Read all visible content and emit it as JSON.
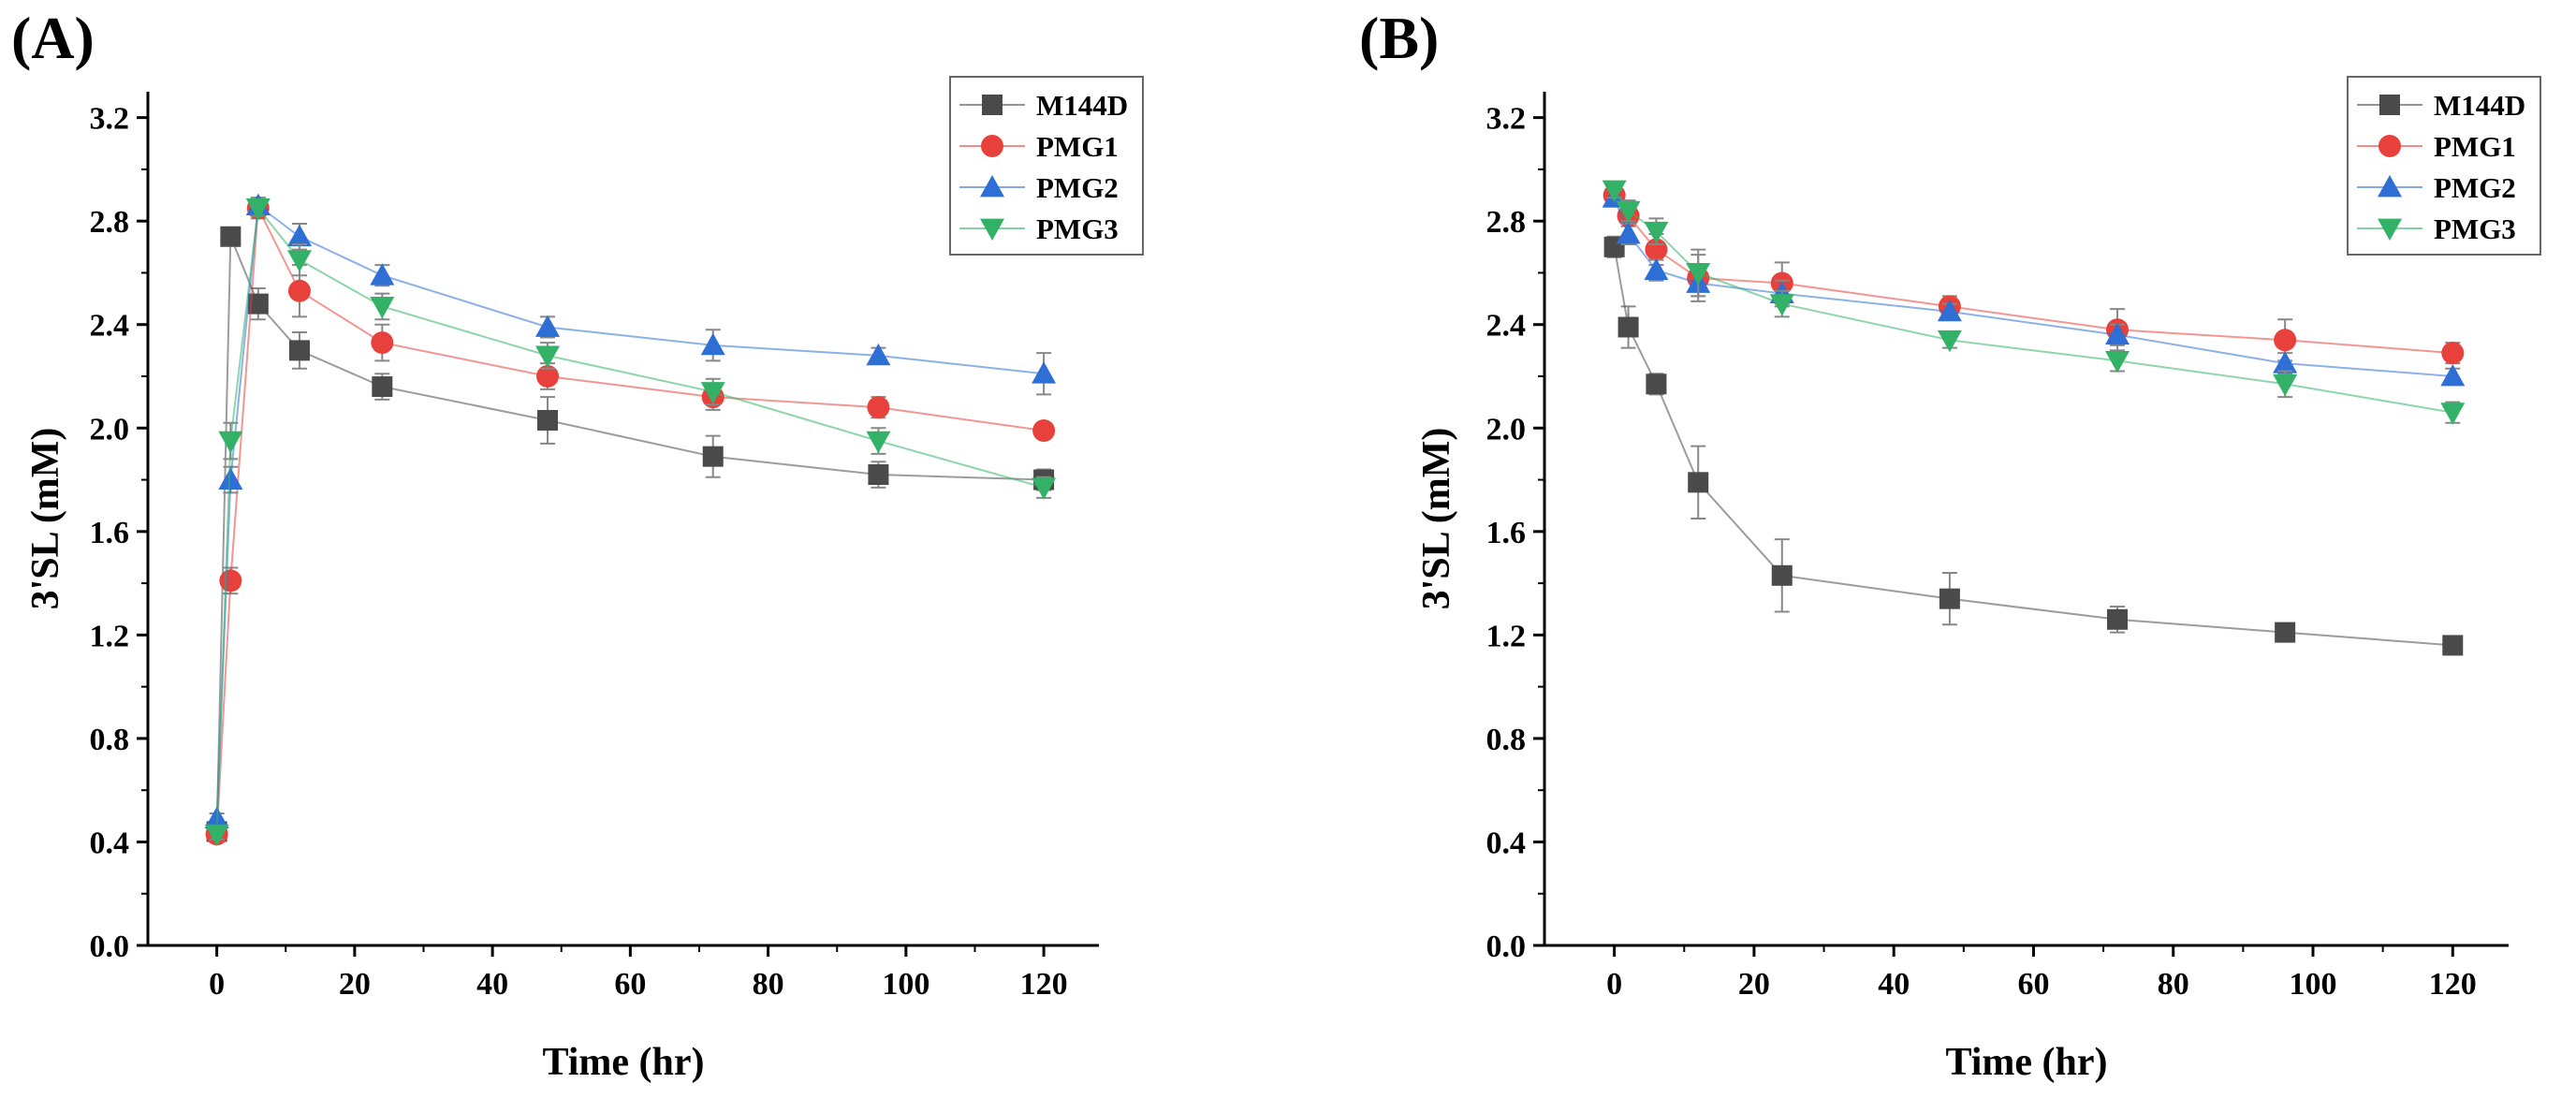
{
  "chart_data": [
    {
      "type": "line",
      "panel_label": "(A)",
      "xlabel": "Time (hr)",
      "ylabel": "3'SL (mM)",
      "xlim": [
        -10,
        128
      ],
      "ylim": [
        0,
        3.3
      ],
      "xticks": [
        0,
        20,
        40,
        60,
        80,
        100,
        120
      ],
      "yticks": [
        0.0,
        0.4,
        0.8,
        1.2,
        1.6,
        2.0,
        2.4,
        2.8,
        3.2
      ],
      "xtick_labels": [
        "0",
        "20",
        "40",
        "60",
        "80",
        "100",
        "120"
      ],
      "ytick_labels": [
        "0.0",
        "0.4",
        "0.8",
        "1.2",
        "1.6",
        "2.0",
        "2.4",
        "2.8",
        "3.2"
      ],
      "legend": "top-right",
      "series": [
        {
          "name": "M144D",
          "color": "#4a4a4a",
          "marker": "square",
          "x": [
            0,
            2,
            6,
            12,
            24,
            48,
            72,
            96,
            120
          ],
          "y": [
            0.44,
            2.74,
            2.48,
            2.3,
            2.16,
            2.03,
            1.89,
            1.82,
            1.8
          ],
          "err": [
            0.02,
            0.03,
            0.06,
            0.07,
            0.05,
            0.09,
            0.08,
            0.05,
            0.04
          ]
        },
        {
          "name": "PMG1",
          "color": "#e8403a",
          "marker": "circle",
          "x": [
            0,
            2,
            6,
            12,
            24,
            48,
            72,
            96,
            120
          ],
          "y": [
            0.43,
            1.41,
            2.85,
            2.53,
            2.33,
            2.2,
            2.12,
            2.08,
            1.99
          ],
          "err": [
            0.02,
            0.05,
            0.04,
            0.1,
            0.07,
            0.05,
            0.05,
            0.04,
            0.03
          ]
        },
        {
          "name": "PMG2",
          "color": "#2e6fd6",
          "marker": "triangle-up",
          "x": [
            0,
            2,
            6,
            12,
            24,
            48,
            72,
            96,
            120
          ],
          "y": [
            0.49,
            1.8,
            2.86,
            2.74,
            2.59,
            2.39,
            2.32,
            2.28,
            2.21
          ],
          "err": [
            0.02,
            0.05,
            0.03,
            0.05,
            0.04,
            0.04,
            0.06,
            0.03,
            0.08
          ]
        },
        {
          "name": "PMG3",
          "color": "#33b267",
          "marker": "triangle-down",
          "x": [
            0,
            2,
            6,
            12,
            24,
            48,
            72,
            96,
            120
          ],
          "y": [
            0.43,
            1.95,
            2.85,
            2.65,
            2.47,
            2.28,
            2.14,
            1.95,
            1.77
          ],
          "err": [
            0.02,
            0.07,
            0.03,
            0.06,
            0.05,
            0.05,
            0.05,
            0.05,
            0.04
          ]
        }
      ]
    },
    {
      "type": "line",
      "panel_label": "(B)",
      "xlabel": "Time (hr)",
      "ylabel": "3'SL (mM)",
      "xlim": [
        -10,
        128
      ],
      "ylim": [
        0,
        3.3
      ],
      "xticks": [
        0,
        20,
        40,
        60,
        80,
        100,
        120
      ],
      "yticks": [
        0.0,
        0.4,
        0.8,
        1.2,
        1.6,
        2.0,
        2.4,
        2.8,
        3.2
      ],
      "xtick_labels": [
        "0",
        "20",
        "40",
        "60",
        "80",
        "100",
        "120"
      ],
      "ytick_labels": [
        "0.0",
        "0.4",
        "0.8",
        "1.2",
        "1.6",
        "2.0",
        "2.4",
        "2.8",
        "3.2"
      ],
      "legend": "top-right",
      "series": [
        {
          "name": "M144D",
          "color": "#4a4a4a",
          "marker": "square",
          "x": [
            0,
            2,
            6,
            12,
            24,
            48,
            72,
            96,
            120
          ],
          "y": [
            2.7,
            2.39,
            2.17,
            1.79,
            1.43,
            1.34,
            1.26,
            1.21,
            1.16
          ],
          "err": [
            0.04,
            0.08,
            0.04,
            0.14,
            0.14,
            0.1,
            0.05,
            0.03,
            0.03
          ]
        },
        {
          "name": "PMG1",
          "color": "#e8403a",
          "marker": "circle",
          "x": [
            0,
            2,
            6,
            12,
            24,
            48,
            72,
            96,
            120
          ],
          "y": [
            2.9,
            2.82,
            2.69,
            2.58,
            2.56,
            2.47,
            2.38,
            2.34,
            2.29
          ],
          "err": [
            0.03,
            0.04,
            0.06,
            0.09,
            0.08,
            0.04,
            0.08,
            0.08,
            0.04
          ]
        },
        {
          "name": "PMG2",
          "color": "#2e6fd6",
          "marker": "triangle-up",
          "x": [
            0,
            2,
            6,
            12,
            24,
            48,
            72,
            96,
            120
          ],
          "y": [
            2.89,
            2.75,
            2.61,
            2.56,
            2.52,
            2.45,
            2.36,
            2.25,
            2.2
          ],
          "err": [
            0.03,
            0.04,
            0.04,
            0.05,
            0.05,
            0.03,
            0.04,
            0.04,
            0.03
          ]
        },
        {
          "name": "PMG3",
          "color": "#33b267",
          "marker": "triangle-down",
          "x": [
            0,
            2,
            6,
            12,
            24,
            48,
            72,
            96,
            120
          ],
          "y": [
            2.92,
            2.84,
            2.76,
            2.6,
            2.48,
            2.34,
            2.26,
            2.17,
            2.06
          ],
          "err": [
            0.03,
            0.04,
            0.05,
            0.09,
            0.05,
            0.03,
            0.04,
            0.05,
            0.04
          ]
        }
      ]
    }
  ]
}
